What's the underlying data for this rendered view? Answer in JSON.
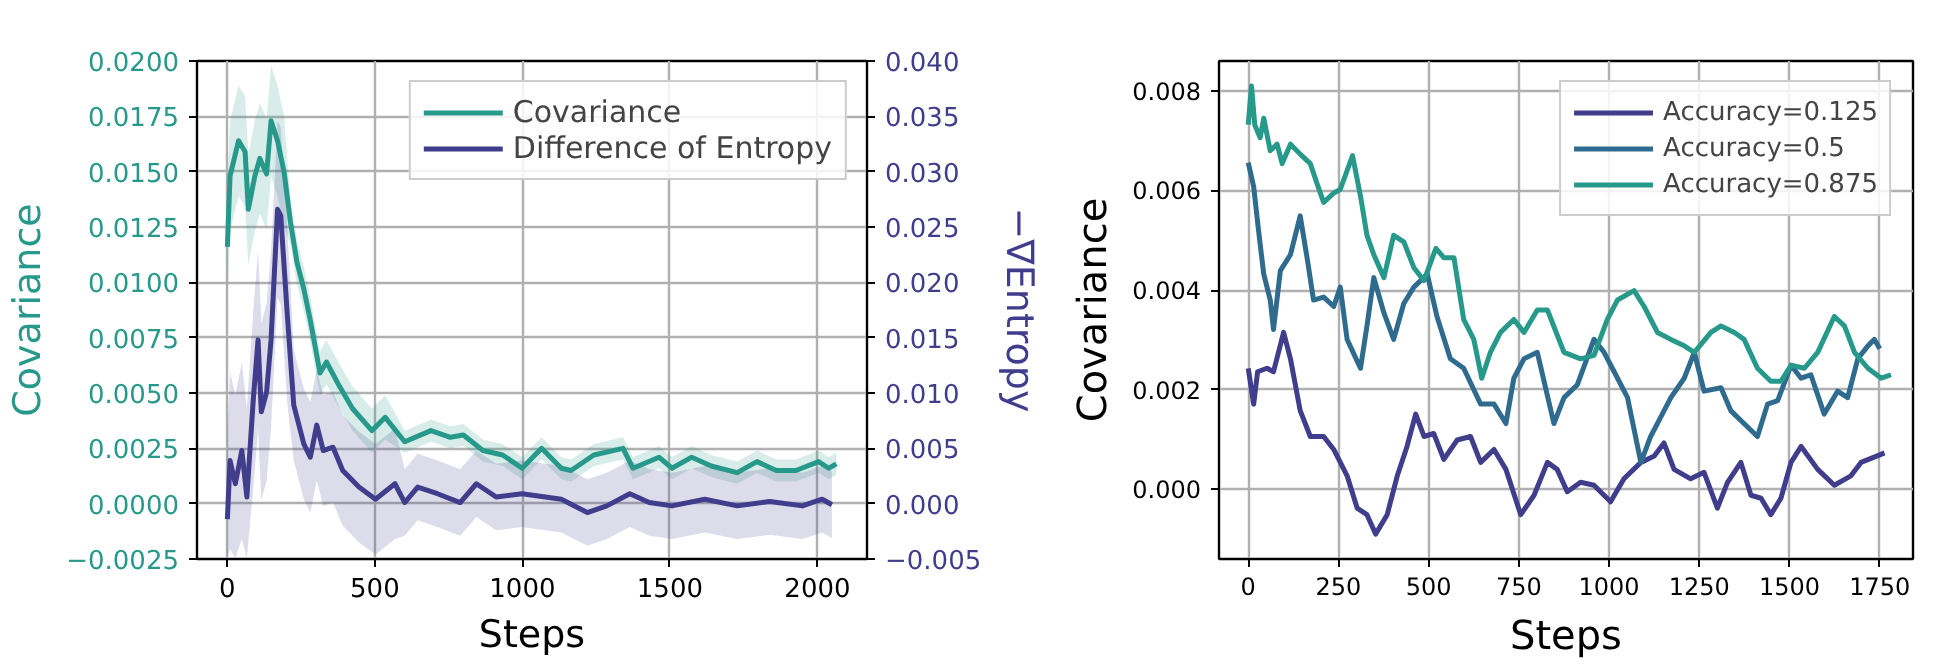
{
  "chart_data": [
    {
      "type": "line",
      "xlabel": "Steps",
      "ylabel": "Covariance",
      "y2label": "−∇Entropy",
      "grid": true,
      "legend": "top right",
      "xlim": [
        -103,
        2168
      ],
      "xticks": [
        0,
        500,
        1000,
        1500,
        2000
      ],
      "ylim": [
        -0.0025,
        0.02
      ],
      "yticks": [
        {
          "value": -0.0025,
          "label": "−0.0025"
        },
        {
          "value": 0,
          "label": "0.0000"
        },
        {
          "value": 0.0025,
          "label": "0.0025"
        },
        {
          "value": 0.005,
          "label": "0.0050"
        },
        {
          "value": 0.0075,
          "label": "0.0075"
        },
        {
          "value": 0.01,
          "label": "0.0100"
        },
        {
          "value": 0.0125,
          "label": "0.0125"
        },
        {
          "value": 0.015,
          "label": "0.0150"
        },
        {
          "value": 0.0175,
          "label": "0.0175"
        },
        {
          "value": 0.02,
          "label": "0.0200"
        }
      ],
      "y2lim": [
        -0.005,
        0.04
      ],
      "y2ticks": [
        {
          "value": -0.005,
          "label": "−0.005"
        },
        {
          "value": 0,
          "label": "0.000"
        },
        {
          "value": 0.005,
          "label": "0.005"
        },
        {
          "value": 0.01,
          "label": "0.010"
        },
        {
          "value": 0.015,
          "label": "0.015"
        },
        {
          "value": 0.02,
          "label": "0.020"
        },
        {
          "value": 0.025,
          "label": "0.025"
        },
        {
          "value": 0.03,
          "label": "0.030"
        },
        {
          "value": 0.035,
          "label": "0.035"
        },
        {
          "value": 0.04,
          "label": "0.040"
        }
      ],
      "series": [
        {
          "name": "Covariance",
          "color": "#26998a",
          "x": [
            0,
            9,
            38,
            60,
            71,
            93,
            110,
            133,
            148,
            170,
            192,
            214,
            236,
            259,
            281,
            314,
            336,
            380,
            424,
            490,
            535,
            601,
            690,
            756,
            800,
            866,
            933,
            999,
            1065,
            1132,
            1165,
            1242,
            1341,
            1375,
            1463,
            1507,
            1574,
            1640,
            1728,
            1795,
            1861,
            1927,
            2004,
            2038,
            2064
          ],
          "values": [
            0.0116,
            0.0148,
            0.0164,
            0.0159,
            0.0133,
            0.0148,
            0.0156,
            0.0149,
            0.0173,
            0.0164,
            0.015,
            0.0127,
            0.0109,
            0.0097,
            0.0083,
            0.0059,
            0.0064,
            0.0053,
            0.0043,
            0.0033,
            0.0039,
            0.0028,
            0.0033,
            0.003,
            0.0031,
            0.0024,
            0.0022,
            0.0016,
            0.0025,
            0.0016,
            0.0015,
            0.0022,
            0.0025,
            0.0016,
            0.0021,
            0.0016,
            0.0021,
            0.0017,
            0.0014,
            0.0019,
            0.0015,
            0.0015,
            0.0019,
            0.0016,
            0.0018
          ],
          "lower": [
            0.0091,
            0.0123,
            0.0139,
            0.0134,
            0.0108,
            0.0123,
            0.0131,
            0.0124,
            0.0148,
            0.0139,
            0.0125,
            0.0117,
            0.0099,
            0.0087,
            0.0073,
            0.0049,
            0.0054,
            0.0043,
            0.0033,
            0.0023,
            0.0029,
            0.0023,
            0.0028,
            0.0025,
            0.0026,
            0.0019,
            0.0017,
            0.0011,
            0.002,
            0.0011,
            0.001,
            0.0017,
            0.002,
            0.0011,
            0.0016,
            0.0011,
            0.0016,
            0.0012,
            0.0009,
            0.0014,
            0.001,
            0.001,
            0.0014,
            0.0011,
            0.0013
          ],
          "upper": [
            0.0141,
            0.0173,
            0.0189,
            0.0184,
            0.0158,
            0.0173,
            0.0181,
            0.0174,
            0.0198,
            0.0189,
            0.0175,
            0.0137,
            0.0119,
            0.0107,
            0.0093,
            0.0069,
            0.0074,
            0.0063,
            0.0053,
            0.0043,
            0.0049,
            0.0033,
            0.0038,
            0.0035,
            0.0036,
            0.0029,
            0.0027,
            0.0021,
            0.003,
            0.0021,
            0.002,
            0.0027,
            0.003,
            0.0021,
            0.0026,
            0.0021,
            0.0026,
            0.0022,
            0.0019,
            0.0024,
            0.002,
            0.002,
            0.0024,
            0.0021,
            0.0023
          ]
        },
        {
          "name": "Difference of Entropy",
          "color": "#3f3d8c",
          "axis": "y2",
          "x": [
            0,
            9,
            27,
            49,
            66,
            88,
            104,
            115,
            133,
            148,
            170,
            181,
            203,
            225,
            259,
            281,
            303,
            325,
            358,
            391,
            446,
            502,
            568,
            601,
            645,
            712,
            789,
            844,
            911,
            999,
            1132,
            1220,
            1286,
            1364,
            1430,
            1507,
            1618,
            1728,
            1839,
            1949,
            2016,
            2049
          ],
          "values": [
            -0.0014,
            0.0039,
            0.0018,
            0.0048,
            0.0006,
            0.0095,
            0.0148,
            0.0083,
            0.0101,
            0.0148,
            0.0266,
            0.026,
            0.0171,
            0.0089,
            0.0054,
            0.0042,
            0.0071,
            0.0048,
            0.0051,
            0.003,
            0.0015,
            0.0004,
            0.0018,
            0.0001,
            0.0015,
            0.0009,
            0.0001,
            0.0018,
            0.0006,
            0.0009,
            0.0004,
            -0.0008,
            -0.0002,
            0.0009,
            0.0001,
            -0.0002,
            0.0004,
            -0.0002,
            0.0002,
            -0.0002,
            0.0004,
            -0.0001
          ],
          "lower": [
            -0.0049,
            -0.0041,
            -0.0049,
            -0.0032,
            -0.0049,
            0.0015,
            0.0068,
            0.0003,
            0.0021,
            0.0068,
            0.0186,
            0.018,
            0.0091,
            0.0039,
            0.0004,
            -0.0008,
            0.0021,
            -0.0002,
            0.0001,
            -0.002,
            -0.0035,
            -0.0046,
            -0.0032,
            -0.0029,
            -0.0015,
            -0.0021,
            -0.0029,
            -0.0012,
            -0.0024,
            -0.0021,
            -0.0026,
            -0.0038,
            -0.0032,
            -0.0021,
            -0.0029,
            -0.0032,
            -0.0026,
            -0.0032,
            -0.0028,
            -0.0032,
            -0.0026,
            -0.0031
          ],
          "upper": [
            0.0066,
            0.0119,
            0.0098,
            0.0128,
            0.0086,
            0.0175,
            0.0228,
            0.0163,
            0.0181,
            0.0228,
            0.0346,
            0.034,
            0.0251,
            0.0139,
            0.0104,
            0.0092,
            0.0121,
            0.0098,
            0.0101,
            0.008,
            0.0065,
            0.0054,
            0.0068,
            0.0031,
            0.0045,
            0.0039,
            0.0031,
            0.0048,
            0.0036,
            0.0039,
            0.0034,
            0.0022,
            0.0028,
            0.0039,
            0.0031,
            0.0028,
            0.0034,
            0.0028,
            0.0032,
            0.0028,
            0.0034,
            0.0029
          ]
        }
      ]
    },
    {
      "type": "line",
      "xlabel": "Steps",
      "ylabel": "Covariance",
      "grid": true,
      "legend": "top right",
      "xlim": [
        -81,
        1842
      ],
      "xticks": [
        0,
        250,
        500,
        750,
        1000,
        1250,
        1500,
        1750
      ],
      "ylim": [
        -0.0014,
        0.0086
      ],
      "yticks": [
        {
          "value": 0,
          "label": "0.000"
        },
        {
          "value": 0.002,
          "label": "0.002"
        },
        {
          "value": 0.004,
          "label": "0.004"
        },
        {
          "value": 0.006,
          "label": "0.006"
        },
        {
          "value": 0.008,
          "label": "0.008"
        }
      ],
      "series": [
        {
          "name": "Accuracy=0.125",
          "color": "#3f3d8c",
          "x": [
            0,
            15,
            26,
            52,
            70,
            98,
            117,
            144,
            172,
            209,
            237,
            274,
            302,
            329,
            353,
            385,
            413,
            440,
            464,
            487,
            514,
            542,
            579,
            616,
            644,
            681,
            714,
            755,
            792,
            829,
            856,
            884,
            921,
            958,
            1004,
            1041,
            1088,
            1125,
            1152,
            1180,
            1226,
            1263,
            1300,
            1328,
            1365,
            1393,
            1421,
            1448,
            1476,
            1504,
            1532,
            1578,
            1624,
            1670,
            1698,
            1750,
            1763
          ],
          "values": [
            0.00243,
            0.00171,
            0.00236,
            0.00243,
            0.00236,
            0.00315,
            0.00262,
            0.00158,
            0.00106,
            0.00106,
            0.0008,
            0.00027,
            -0.00038,
            -0.00051,
            -0.0009,
            -0.00051,
            0.00027,
            0.00086,
            0.00151,
            0.00106,
            0.00112,
            0.0006,
            0.00099,
            0.00106,
            0.00054,
            0.0008,
            0.0004,
            -0.00051,
            -0.00012,
            0.00054,
            0.0004,
            -5e-05,
            0.00014,
            8e-05,
            -0.00025,
            0.00021,
            0.00054,
            0.00067,
            0.00093,
            0.0004,
            0.00021,
            0.00034,
            -0.00038,
            0.00014,
            0.00054,
            -0.00012,
            -0.00018,
            -0.00051,
            -0.00018,
            0.00054,
            0.00086,
            0.0004,
            8e-05,
            0.00027,
            0.00054,
            0.00069,
            0.00073
          ]
        },
        {
          "name": "Accuracy=0.5",
          "color": "#2e6b8e",
          "x": [
            0,
            15,
            28,
            43,
            61,
            70,
            89,
            117,
            144,
            163,
            181,
            209,
            237,
            255,
            274,
            311,
            329,
            348,
            376,
            403,
            431,
            459,
            496,
            523,
            560,
            597,
            644,
            681,
            714,
            736,
            764,
            801,
            847,
            875,
            912,
            958,
            986,
            1014,
            1051,
            1088,
            1115,
            1143,
            1171,
            1208,
            1236,
            1263,
            1310,
            1337,
            1365,
            1411,
            1439,
            1467,
            1504,
            1532,
            1559,
            1596,
            1633,
            1661,
            1689,
            1717,
            1735,
            1750
          ],
          "values": [
            0.00656,
            0.00608,
            0.00523,
            0.00432,
            0.0038,
            0.00321,
            0.00439,
            0.00471,
            0.00549,
            0.00465,
            0.0038,
            0.00386,
            0.00367,
            0.00406,
            0.00301,
            0.00243,
            0.00328,
            0.00425,
            0.00354,
            0.00301,
            0.00373,
            0.00406,
            0.00432,
            0.00347,
            0.00262,
            0.00243,
            0.00171,
            0.00171,
            0.00132,
            0.00223,
            0.00262,
            0.00275,
            0.00132,
            0.00184,
            0.0021,
            0.00301,
            0.00275,
            0.00236,
            0.00184,
            0.00054,
            0.00106,
            0.00145,
            0.00184,
            0.00223,
            0.00275,
            0.00197,
            0.00204,
            0.00158,
            0.00138,
            0.00106,
            0.00171,
            0.00178,
            0.00249,
            0.00223,
            0.0023,
            0.00151,
            0.00197,
            0.00184,
            0.00262,
            0.00288,
            0.00301,
            0.00282
          ]
        },
        {
          "name": "Accuracy=0.875",
          "color": "#26998a",
          "x": [
            0,
            9,
            18,
            33,
            43,
            61,
            80,
            94,
            117,
            144,
            172,
            190,
            209,
            237,
            255,
            289,
            311,
            329,
            348,
            376,
            403,
            431,
            459,
            487,
            520,
            542,
            570,
            597,
            625,
            647,
            671,
            699,
            736,
            764,
            801,
            829,
            875,
            921,
            958,
            995,
            1023,
            1069,
            1097,
            1134,
            1171,
            1208,
            1236,
            1282,
            1310,
            1347,
            1374,
            1411,
            1448,
            1476,
            1504,
            1541,
            1578,
            1624,
            1652,
            1680,
            1717,
            1754,
            1781
          ],
          "values": [
            0.00732,
            0.0081,
            0.00732,
            0.00706,
            0.00745,
            0.0068,
            0.00693,
            0.00654,
            0.00693,
            0.00673,
            0.00654,
            0.00615,
            0.00576,
            0.00595,
            0.00602,
            0.0067,
            0.00589,
            0.0051,
            0.00471,
            0.00425,
            0.0051,
            0.00497,
            0.00445,
            0.00419,
            0.00484,
            0.00465,
            0.00465,
            0.00341,
            0.00301,
            0.00223,
            0.00275,
            0.00315,
            0.00341,
            0.00315,
            0.0036,
            0.0036,
            0.00275,
            0.00262,
            0.00269,
            0.00341,
            0.0038,
            0.00399,
            0.00367,
            0.00315,
            0.00301,
            0.00288,
            0.00275,
            0.00315,
            0.00328,
            0.00315,
            0.00301,
            0.00243,
            0.00217,
            0.00217,
            0.00249,
            0.00243,
            0.00275,
            0.00347,
            0.00328,
            0.00275,
            0.00243,
            0.00223,
            0.0023
          ]
        }
      ]
    }
  ]
}
